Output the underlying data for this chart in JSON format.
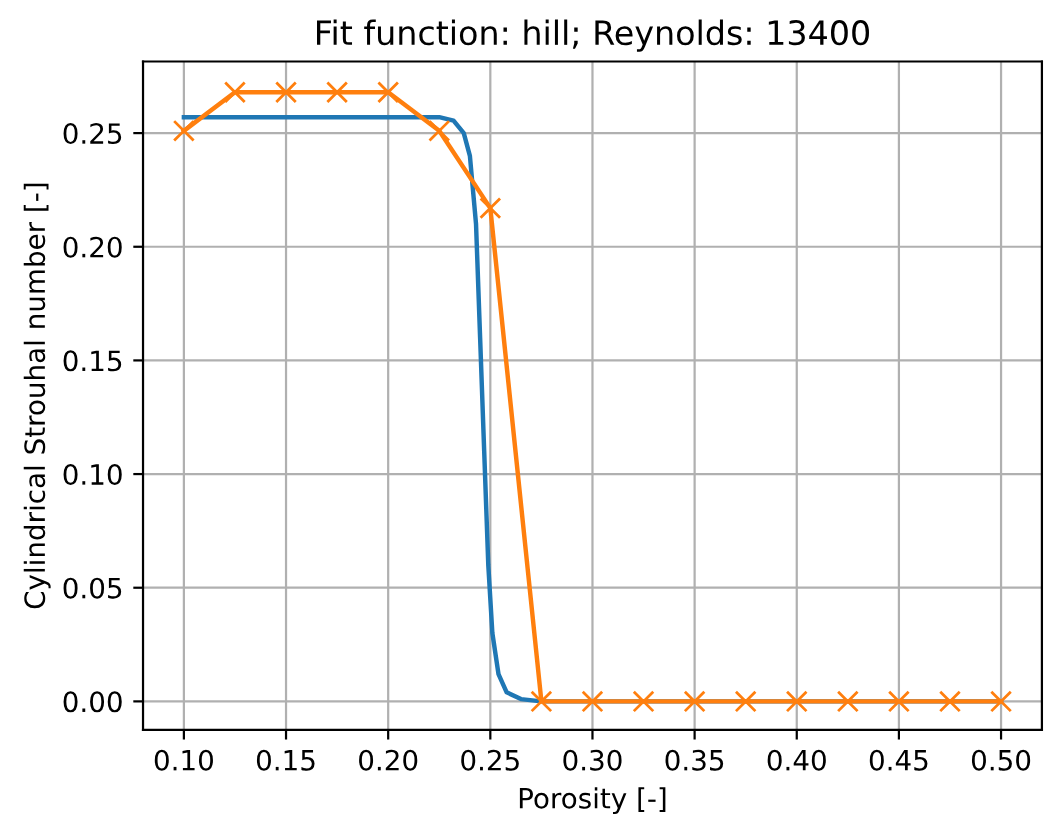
{
  "chart_data": {
    "type": "line",
    "title": "Fit function: hill; Reynolds: 13400",
    "xlabel": "Porosity [-]",
    "ylabel": "Cylindrical Strouhal number [-]",
    "xlim": [
      0.08,
      0.52
    ],
    "ylim": [
      -0.0125,
      0.2815
    ],
    "xticks": [
      {
        "value": 0.1,
        "label": "0.10"
      },
      {
        "value": 0.15,
        "label": "0.15"
      },
      {
        "value": 0.2,
        "label": "0.20"
      },
      {
        "value": 0.25,
        "label": "0.25"
      },
      {
        "value": 0.3,
        "label": "0.30"
      },
      {
        "value": 0.35,
        "label": "0.35"
      },
      {
        "value": 0.4,
        "label": "0.40"
      },
      {
        "value": 0.45,
        "label": "0.45"
      },
      {
        "value": 0.5,
        "label": "0.50"
      }
    ],
    "yticks": [
      {
        "value": 0,
        "label": "0.00"
      },
      {
        "value": 0.05,
        "label": "0.05"
      },
      {
        "value": 0.1,
        "label": "0.10"
      },
      {
        "value": 0.15,
        "label": "0.15"
      },
      {
        "value": 0.2,
        "label": "0.20"
      },
      {
        "value": 0.25,
        "label": "0.25"
      }
    ],
    "grid": true,
    "series": [
      {
        "color": "#1f77b4",
        "marker": "none",
        "x": [
          0.1,
          0.225,
          0.232,
          0.237,
          0.24,
          0.243,
          0.245,
          0.247,
          0.249,
          0.251,
          0.254,
          0.258,
          0.265,
          0.275,
          0.5
        ],
        "values": [
          0.257,
          0.257,
          0.2555,
          0.25,
          0.24,
          0.21,
          0.16,
          0.11,
          0.06,
          0.03,
          0.012,
          0.004,
          0.001,
          0,
          0
        ]
      },
      {
        "color": "#ff7f0e",
        "marker": "cross",
        "x": [
          0.1,
          0.125,
          0.15,
          0.175,
          0.2,
          0.225,
          0.25,
          0.275,
          0.3,
          0.325,
          0.35,
          0.375,
          0.4,
          0.425,
          0.45,
          0.475,
          0.5
        ],
        "values": [
          0.251,
          0.268,
          0.268,
          0.268,
          0.268,
          0.251,
          0.217,
          0,
          0,
          0,
          0,
          0,
          0,
          0,
          0,
          0,
          0
        ]
      }
    ]
  }
}
